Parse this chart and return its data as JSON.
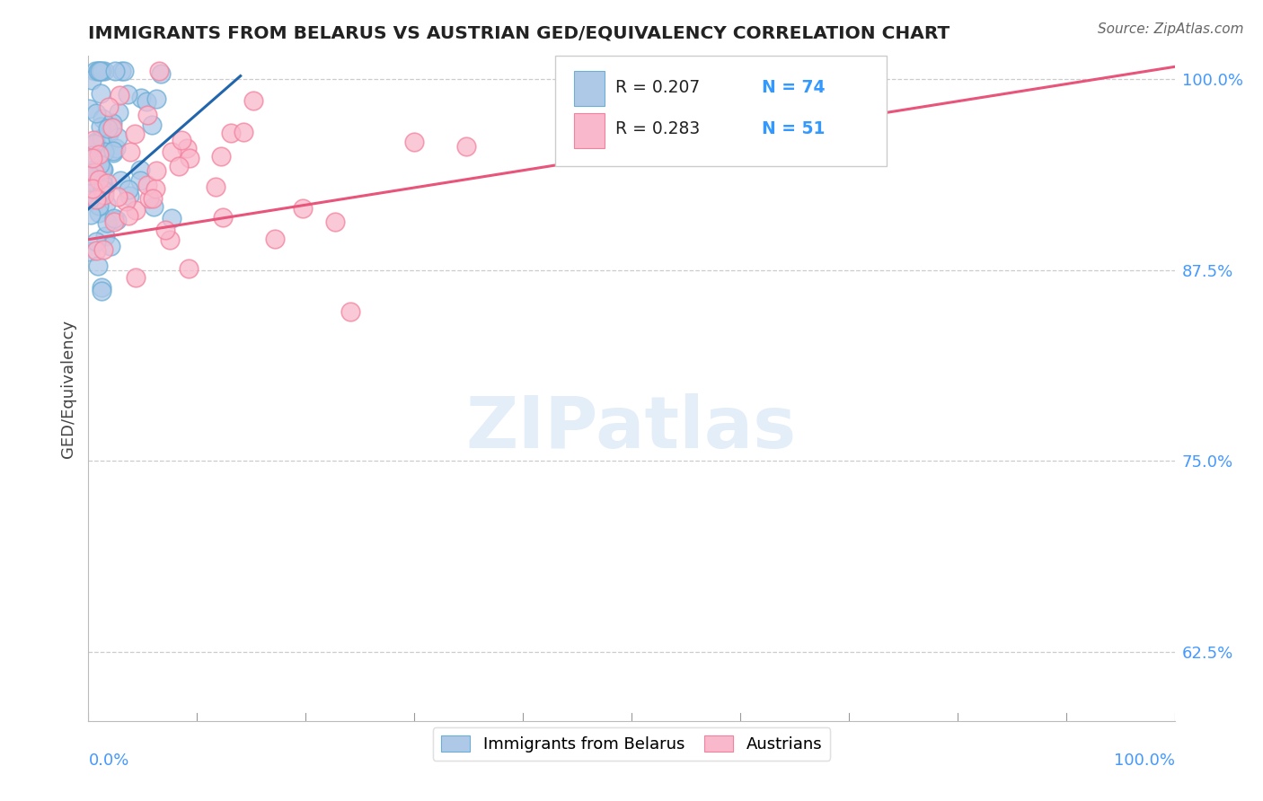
{
  "title": "IMMIGRANTS FROM BELARUS VS AUSTRIAN GED/EQUIVALENCY CORRELATION CHART",
  "source": "Source: ZipAtlas.com",
  "ylabel": "GED/Equivalency",
  "watermark": "ZIPatlas",
  "legend_r_values": [
    "0.207",
    "0.283"
  ],
  "legend_n_values": [
    "74",
    "51"
  ],
  "blue_color": "#6baed6",
  "pink_color": "#f4829e",
  "blue_fill": "#aec9e8",
  "pink_fill": "#f9b8cc",
  "blue_line_color": "#2166ac",
  "pink_line_color": "#e8547a",
  "xmin": 0.0,
  "xmax": 100.0,
  "ymin": 58.0,
  "ymax": 101.5,
  "ytick_vals": [
    62.5,
    75.0,
    87.5,
    100.0
  ],
  "grid_color": "#cccccc",
  "background_color": "#ffffff",
  "blue_line_x0": 0.0,
  "blue_line_x1": 14.0,
  "blue_line_y0": 91.5,
  "blue_line_y1": 100.2,
  "pink_line_x0": 0.0,
  "pink_line_x1": 100.0,
  "pink_line_y0": 89.5,
  "pink_line_y1": 100.8
}
